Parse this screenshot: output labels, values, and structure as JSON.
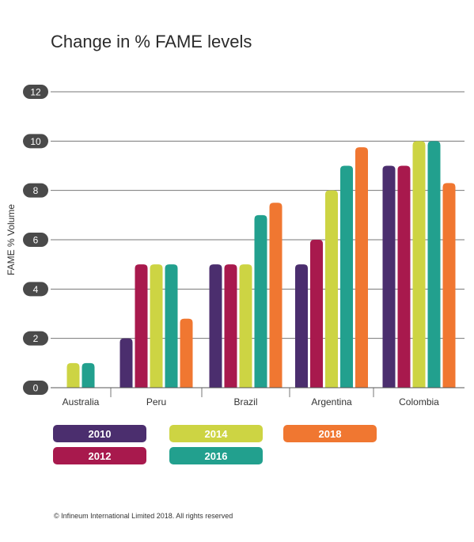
{
  "chart_data": {
    "type": "bar",
    "title": "Change in % FAME levels",
    "ylabel": "FAME % Volume",
    "xlabel": "",
    "ylim": [
      0,
      12
    ],
    "yticks": [
      0,
      2,
      4,
      6,
      8,
      10,
      12
    ],
    "grid": true,
    "legend_position": "bottom",
    "categories": [
      "Australia",
      "Peru",
      "Brazil",
      "Argentina",
      "Colombia"
    ],
    "series": [
      {
        "name": "2010",
        "color": "#4b2e6e",
        "values": [
          null,
          2,
          5,
          5,
          9
        ]
      },
      {
        "name": "2012",
        "color": "#a8194d",
        "values": [
          null,
          5,
          5,
          6,
          9
        ]
      },
      {
        "name": "2014",
        "color": "#cdd443",
        "values": [
          1,
          5,
          5,
          8,
          10
        ]
      },
      {
        "name": "2016",
        "color": "#22a08e",
        "values": [
          1,
          5,
          7,
          9,
          10
        ]
      },
      {
        "name": "2018",
        "color": "#f07731",
        "values": [
          null,
          2.8,
          7.5,
          9.75,
          8.3
        ]
      }
    ]
  },
  "footer": {
    "copyright": "© Infineum International Limited 2018. All rights reserved"
  }
}
